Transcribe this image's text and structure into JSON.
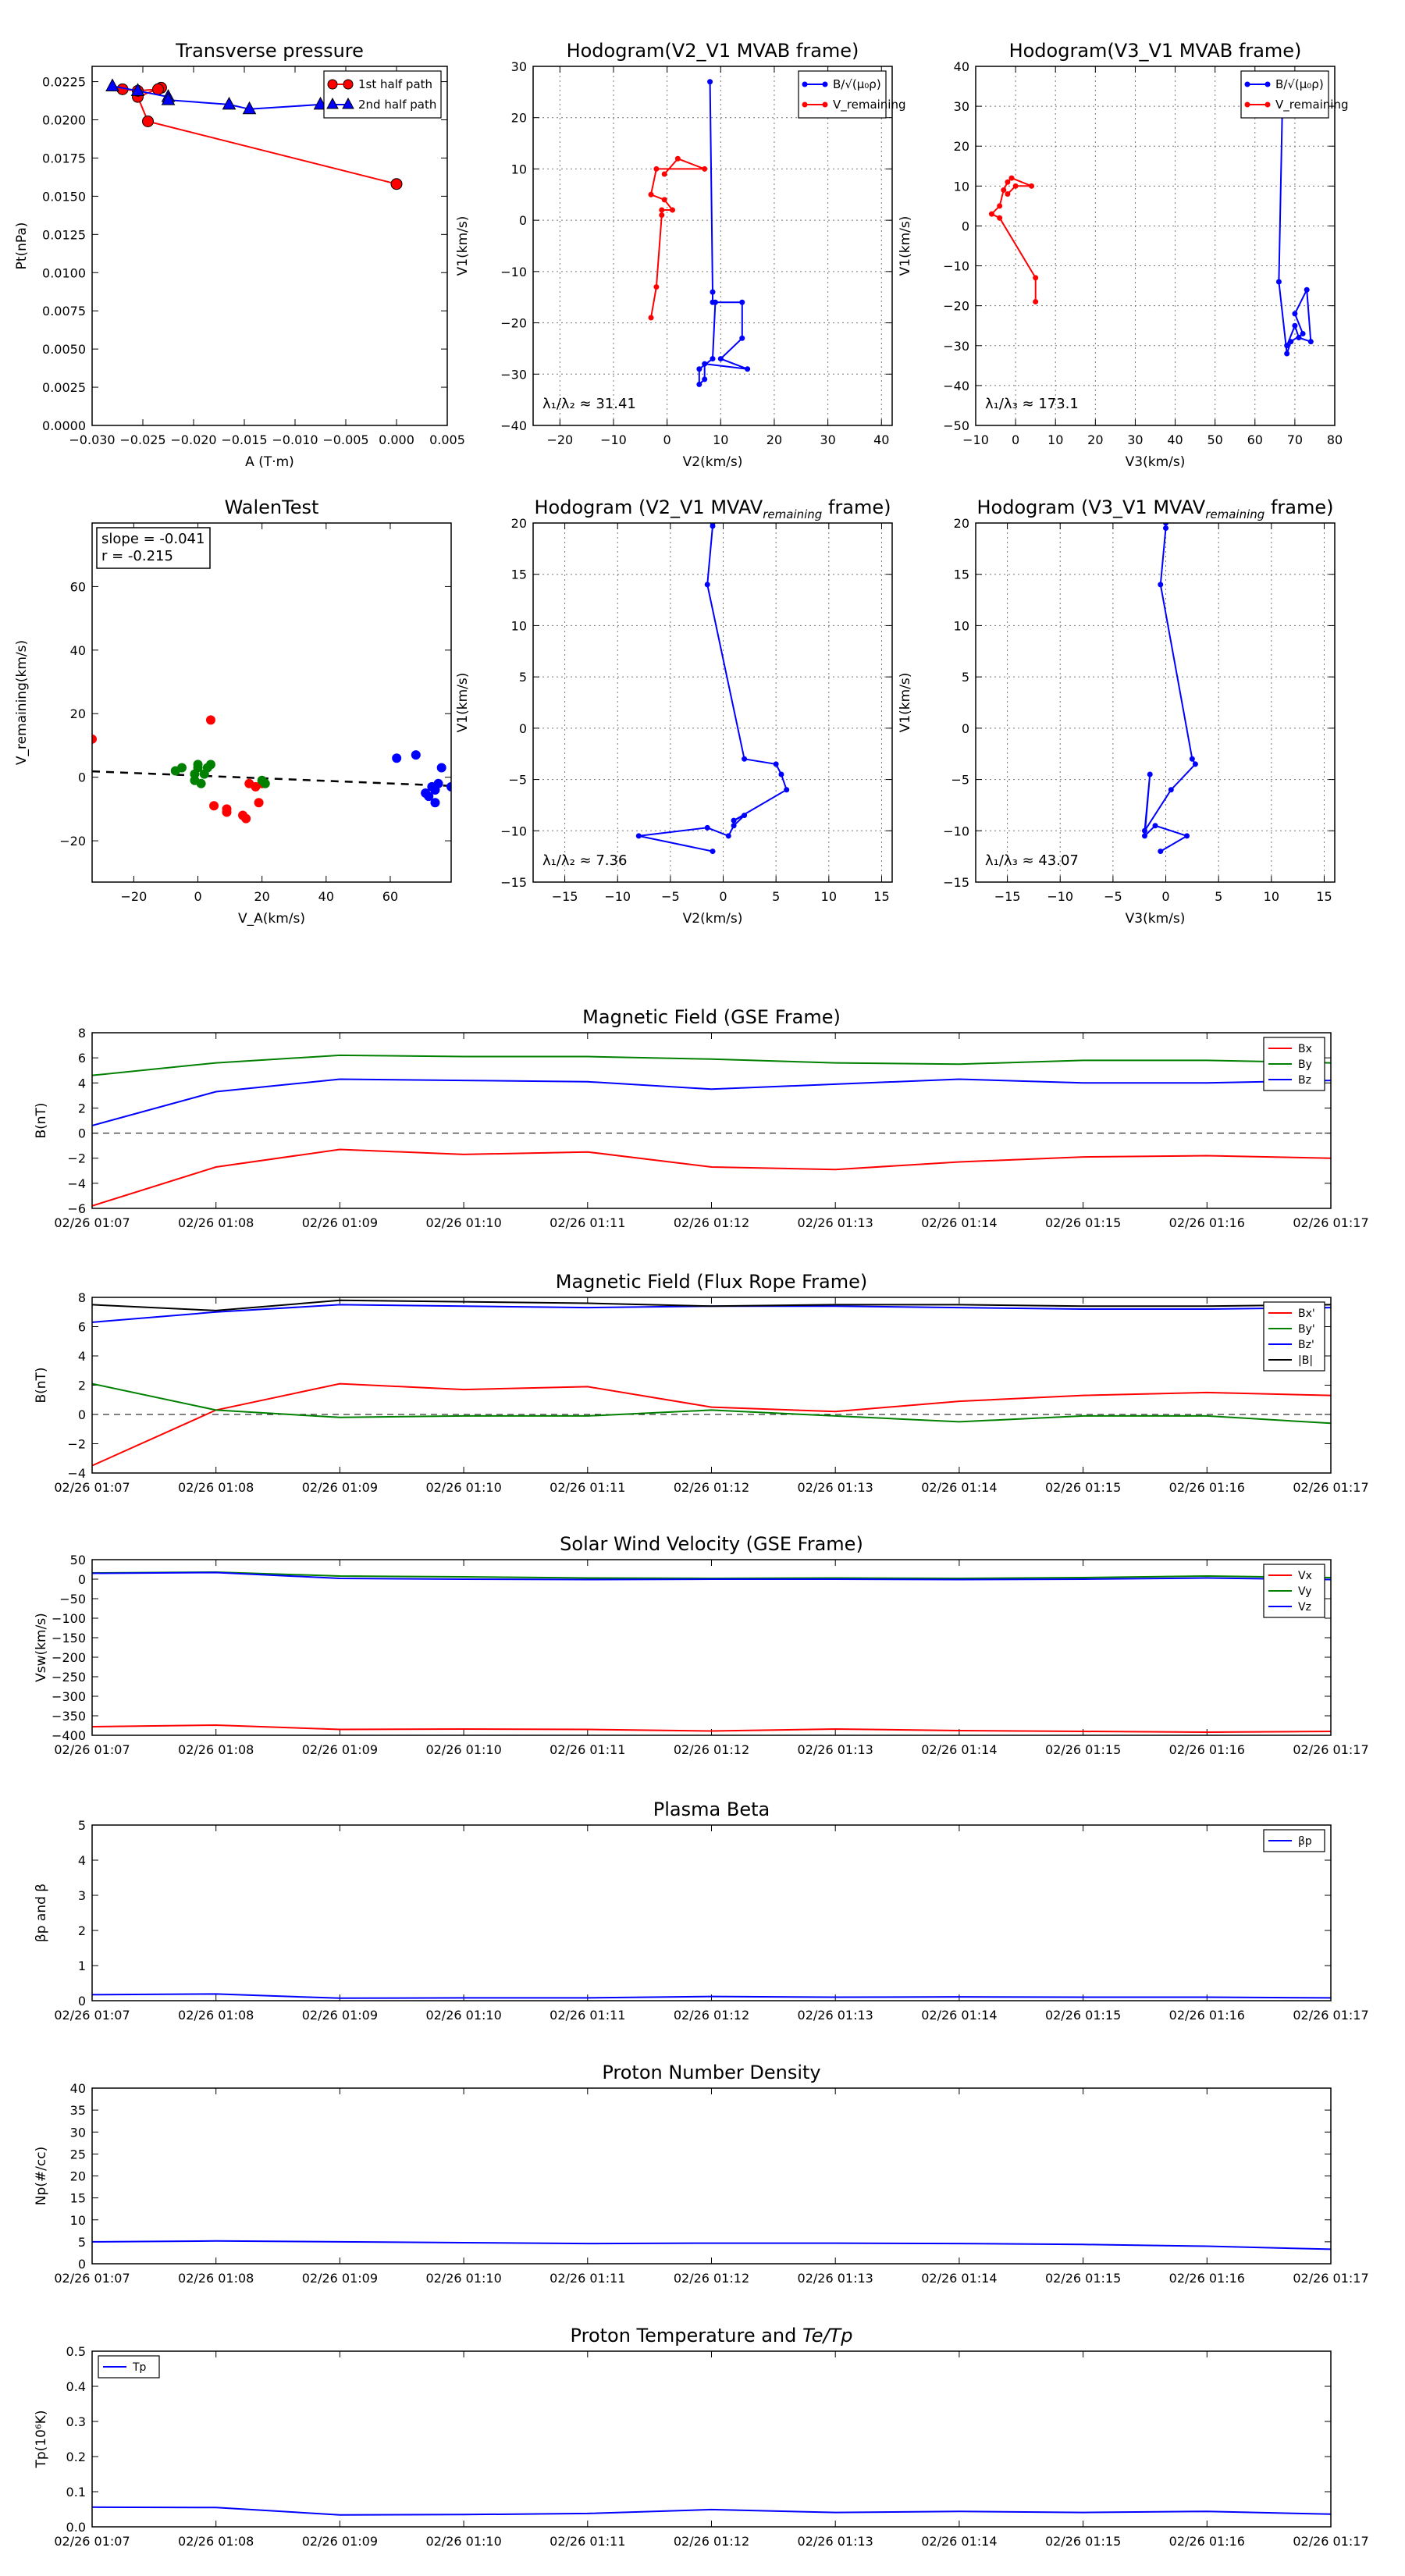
{
  "colors": {
    "red": "#ff0000",
    "blue": "#0000ff",
    "green": "#008000",
    "black": "#000000",
    "grid": "#888888"
  },
  "chart_data": [
    {
      "id": "tp",
      "type": "line",
      "title": "Transverse pressure",
      "xlabel": "A (T·m)",
      "ylabel": "Pt(nPa)",
      "xlim": [
        -0.03,
        0.005
      ],
      "ylim": [
        0,
        0.0235
      ],
      "xticks": [
        -0.03,
        -0.025,
        -0.02,
        -0.015,
        -0.01,
        -0.005,
        0,
        0.005
      ],
      "xtick_labels": [
        "−0.030",
        "−0.025",
        "−0.020",
        "−0.015",
        "−0.010",
        "−0.005",
        "0.000",
        "0.005"
      ],
      "yticks": [
        0,
        0.0025,
        0.005,
        0.0075,
        0.01,
        0.0125,
        0.015,
        0.0175,
        0.02,
        0.0225
      ],
      "ytick_labels": [
        "0.0000",
        "0.0025",
        "0.0050",
        "0.0075",
        "0.0100",
        "0.0125",
        "0.0150",
        "0.0175",
        "0.0200",
        "0.0225"
      ],
      "grid": false,
      "legend_loc": "upper right",
      "series": [
        {
          "name": "1st half path",
          "color": "#ff0000",
          "marker": "circle",
          "x": [
            -0.0,
            -0.0245,
            -0.0255,
            -0.0232,
            -0.0235,
            -0.0255,
            -0.027
          ],
          "y": [
            0.0158,
            0.0199,
            0.0215,
            0.0221,
            0.022,
            0.0219,
            0.022
          ]
        },
        {
          "name": "2nd half path",
          "color": "#0000ff",
          "marker": "triangle",
          "x": [
            -0.028,
            -0.0255,
            -0.0225,
            -0.0225,
            -0.0165,
            -0.0145,
            -0.0075
          ],
          "y": [
            0.0222,
            0.0219,
            0.0215,
            0.0213,
            0.021,
            0.0207,
            0.021
          ]
        }
      ]
    },
    {
      "id": "h1",
      "type": "line",
      "title": "Hodogram(V2_V1 MVAB frame)",
      "xlabel": "V2(km/s)",
      "ylabel": "V1(km/s)",
      "xlim": [
        -25,
        42
      ],
      "ylim": [
        -40,
        30
      ],
      "xticks": [
        -20,
        -10,
        0,
        10,
        20,
        30,
        40
      ],
      "xtick_labels": [
        "−20",
        "−10",
        "0",
        "10",
        "20",
        "30",
        "40"
      ],
      "yticks": [
        -40,
        -30,
        -20,
        -10,
        0,
        10,
        20,
        30
      ],
      "ytick_labels": [
        "−40",
        "−30",
        "−20",
        "−10",
        "0",
        "10",
        "20",
        "30"
      ],
      "grid": true,
      "legend_loc": "upper right",
      "annotation": "λ₁/λ₂ ≈ 31.41",
      "series": [
        {
          "name": "B/√(μ₀ρ)",
          "color": "#0000ff",
          "marker": "dot",
          "x": [
            8,
            8.5,
            8.5,
            14,
            14,
            10,
            15,
            7,
            7,
            6,
            6,
            8.5,
            9
          ],
          "y": [
            27,
            -14,
            -16,
            -16,
            -23,
            -27,
            -29,
            -28,
            -31,
            -32,
            -29,
            -27,
            -16
          ]
        },
        {
          "name": "V_remaining",
          "color": "#ff0000",
          "marker": "dot",
          "x": [
            -3,
            -2,
            -1,
            -1,
            1,
            -0.5,
            -3,
            -2,
            7,
            2,
            -0.5
          ],
          "y": [
            -19,
            -13,
            1,
            2,
            2,
            4,
            5,
            10,
            10,
            12,
            9
          ]
        }
      ]
    },
    {
      "id": "h2",
      "type": "line",
      "title": "Hodogram(V3_V1 MVAB frame)",
      "xlabel": "V3(km/s)",
      "ylabel": "V1(km/s)",
      "xlim": [
        -10,
        80
      ],
      "ylim": [
        -50,
        40
      ],
      "xticks": [
        -10,
        0,
        10,
        20,
        30,
        40,
        50,
        60,
        70,
        80
      ],
      "xtick_labels": [
        "−10",
        "0",
        "10",
        "20",
        "30",
        "40",
        "50",
        "60",
        "70",
        "80"
      ],
      "yticks": [
        -50,
        -40,
        -30,
        -20,
        -10,
        0,
        10,
        20,
        30,
        40
      ],
      "ytick_labels": [
        "−50",
        "−40",
        "−30",
        "−20",
        "−10",
        "0",
        "10",
        "20",
        "30",
        "40"
      ],
      "grid": true,
      "legend_loc": "upper right",
      "annotation": "λ₁/λ₃ ≈ 173.1",
      "series": [
        {
          "name": "B/√(μ₀ρ)",
          "color": "#0000ff",
          "marker": "dot",
          "x": [
            67,
            66,
            68,
            69,
            72,
            70,
            73,
            74,
            71,
            70,
            68
          ],
          "y": [
            37,
            -14,
            -32,
            -29,
            -27,
            -22,
            -16,
            -29,
            -28,
            -25,
            -30
          ]
        },
        {
          "name": "V_remaining",
          "color": "#ff0000",
          "marker": "dot",
          "x": [
            5,
            5,
            -4,
            -6,
            -4,
            -3,
            -2,
            -1,
            4,
            0,
            -2
          ],
          "y": [
            -19,
            -13,
            2,
            3,
            5,
            9,
            11,
            12,
            10,
            10,
            8
          ]
        }
      ]
    },
    {
      "id": "walen",
      "type": "scatter",
      "title": "WalenTest",
      "xlabel": "V_A(km/s)",
      "ylabel": "V_remaining(km/s)",
      "xlim": [
        -33,
        79
      ],
      "ylim": [
        -33,
        80
      ],
      "xticks": [
        -20,
        0,
        20,
        40,
        60
      ],
      "xtick_labels": [
        "−20",
        "0",
        "20",
        "40",
        "60"
      ],
      "yticks": [
        -20,
        0,
        20,
        40,
        60
      ],
      "ytick_labels": [
        "−20",
        "0",
        "20",
        "40",
        "60"
      ],
      "grid": false,
      "text": [
        "slope = -0.041",
        "r = -0.215"
      ],
      "fit_line": {
        "slope": -0.041,
        "intercept": 0.5
      },
      "series": [
        {
          "name": "red",
          "color": "#ff0000",
          "x": [
            -33,
            4,
            5,
            9,
            9,
            14,
            15,
            16,
            18,
            19,
            20
          ],
          "y": [
            12,
            18,
            -9,
            -10,
            -11,
            -12,
            -13,
            -2,
            -3,
            -8,
            -2
          ]
        },
        {
          "name": "green",
          "color": "#008000",
          "x": [
            -7,
            -5,
            -1,
            -1,
            0,
            0,
            1,
            2,
            3,
            4,
            20,
            21
          ],
          "y": [
            2,
            3,
            -1,
            1,
            3,
            4,
            -2,
            1,
            3,
            4,
            -1,
            -2
          ]
        },
        {
          "name": "blue",
          "color": "#0000ff",
          "x": [
            62,
            68,
            71,
            72,
            73,
            74,
            74,
            75,
            76,
            79
          ],
          "y": [
            6,
            7,
            -5,
            -6,
            -3,
            -4,
            -8,
            -2,
            3,
            -3
          ]
        }
      ]
    },
    {
      "id": "h3",
      "type": "line",
      "title": "Hodogram (V2_V1 MVAV",
      "title_sub": "remaining",
      "title_suffix": " frame)",
      "xlabel": "V2(km/s)",
      "ylabel": "V1(km/s)",
      "xlim": [
        -18,
        16
      ],
      "ylim": [
        -15,
        20
      ],
      "xticks": [
        -15,
        -10,
        -5,
        0,
        5,
        10,
        15
      ],
      "xtick_labels": [
        "−15",
        "−10",
        "−5",
        "0",
        "5",
        "10",
        "15"
      ],
      "yticks": [
        -15,
        -10,
        -5,
        0,
        5,
        10,
        15,
        20
      ],
      "ytick_labels": [
        "−15",
        "−10",
        "−5",
        "0",
        "5",
        "10",
        "15",
        "20"
      ],
      "grid": true,
      "annotation": "λ₁/λ₂ ≈ 7.36",
      "series": [
        {
          "name": "blue",
          "color": "#0000ff",
          "marker": "dot",
          "x": [
            -1,
            -1,
            -1.5,
            2,
            5,
            5.5,
            6,
            1,
            2,
            1,
            0.5,
            -1.5,
            -8,
            -1
          ],
          "y": [
            20,
            19.7,
            14,
            -3,
            -3.5,
            -4.5,
            -6,
            -9,
            -8.5,
            -9.5,
            -10.5,
            -9.7,
            -10.5,
            -12
          ]
        }
      ]
    },
    {
      "id": "h4",
      "type": "line",
      "title": "Hodogram (V3_V1 MVAV",
      "title_sub": "remaining",
      "title_suffix": " frame)",
      "xlabel": "V3(km/s)",
      "ylabel": "V1(km/s)",
      "xlim": [
        -18,
        16
      ],
      "ylim": [
        -15,
        20
      ],
      "xticks": [
        -15,
        -10,
        -5,
        0,
        5,
        10,
        15
      ],
      "xtick_labels": [
        "−15",
        "−10",
        "−5",
        "0",
        "5",
        "10",
        "15"
      ],
      "yticks": [
        -15,
        -10,
        -5,
        0,
        5,
        10,
        15,
        20
      ],
      "ytick_labels": [
        "−15",
        "−10",
        "−5",
        "0",
        "5",
        "10",
        "15",
        "20"
      ],
      "grid": true,
      "annotation": "λ₁/λ₃ ≈ 43.07",
      "series": [
        {
          "name": "blue",
          "color": "#0000ff",
          "marker": "dot",
          "x": [
            0,
            0,
            -0.5,
            2.5,
            2.8,
            0.5,
            -2,
            -1.5,
            -2,
            -1,
            2,
            -0.5
          ],
          "y": [
            20,
            19.5,
            14,
            -3,
            -3.5,
            -6,
            -10,
            -4.5,
            -10.5,
            -9.5,
            -10.5,
            -12
          ]
        }
      ]
    },
    {
      "id": "ts1",
      "type": "line",
      "title": "Magnetic Field (GSE Frame)",
      "ylabel": "B(nT)",
      "categories": [
        "02/26 01:07",
        "02/26 01:08",
        "02/26 01:09",
        "02/26 01:10",
        "02/26 01:11",
        "02/26 01:12",
        "02/26 01:13",
        "02/26 01:14",
        "02/26 01:15",
        "02/26 01:16",
        "02/26 01:17"
      ],
      "ylim": [
        -6,
        8
      ],
      "yticks": [
        -6,
        -4,
        -2,
        0,
        2,
        4,
        6,
        8
      ],
      "ytick_labels": [
        "−6",
        "−4",
        "−2",
        "0",
        "2",
        "4",
        "6",
        "8"
      ],
      "zero_line": true,
      "legend_loc": "upper right",
      "series": [
        {
          "name": "Bx",
          "color": "#ff0000",
          "values": [
            -5.8,
            -2.7,
            -1.3,
            -1.7,
            -1.5,
            -2.7,
            -2.9,
            -2.3,
            -1.9,
            -1.8,
            -2.0
          ]
        },
        {
          "name": "By",
          "color": "#008000",
          "values": [
            4.6,
            5.6,
            6.2,
            6.1,
            6.1,
            5.9,
            5.6,
            5.5,
            5.8,
            5.8,
            5.6
          ]
        },
        {
          "name": "Bz",
          "color": "#0000ff",
          "values": [
            0.6,
            3.3,
            4.3,
            4.2,
            4.1,
            3.5,
            3.9,
            4.3,
            4.0,
            4.0,
            4.2
          ]
        }
      ]
    },
    {
      "id": "ts2",
      "type": "line",
      "title": "Magnetic Field (Flux Rope Frame)",
      "ylabel": "B(nT)",
      "categories": [
        "02/26 01:07",
        "02/26 01:08",
        "02/26 01:09",
        "02/26 01:10",
        "02/26 01:11",
        "02/26 01:12",
        "02/26 01:13",
        "02/26 01:14",
        "02/26 01:15",
        "02/26 01:16",
        "02/26 01:17"
      ],
      "ylim": [
        -4,
        8
      ],
      "yticks": [
        -4,
        -2,
        0,
        2,
        4,
        6,
        8
      ],
      "ytick_labels": [
        "−4",
        "−2",
        "0",
        "2",
        "4",
        "6",
        "8"
      ],
      "zero_line": true,
      "legend_loc": "upper right",
      "series": [
        {
          "name": "Bx'",
          "color": "#ff0000",
          "values": [
            -3.5,
            0.3,
            2.1,
            1.7,
            1.9,
            0.5,
            0.2,
            0.9,
            1.3,
            1.5,
            1.3
          ]
        },
        {
          "name": "By'",
          "color": "#008000",
          "values": [
            2.1,
            0.3,
            -0.2,
            -0.1,
            -0.1,
            0.3,
            -0.1,
            -0.5,
            -0.1,
            -0.1,
            -0.6
          ]
        },
        {
          "name": "Bz'",
          "color": "#0000ff",
          "values": [
            6.3,
            7.0,
            7.5,
            7.4,
            7.3,
            7.4,
            7.4,
            7.3,
            7.2,
            7.2,
            7.3
          ]
        },
        {
          "name": "|B|",
          "color": "#000000",
          "values": [
            7.5,
            7.1,
            7.8,
            7.7,
            7.6,
            7.4,
            7.5,
            7.5,
            7.4,
            7.4,
            7.5
          ]
        }
      ]
    },
    {
      "id": "ts3",
      "type": "line",
      "title": "Solar Wind Velocity (GSE Frame)",
      "ylabel": "Vsw(km/s)",
      "categories": [
        "02/26 01:07",
        "02/26 01:08",
        "02/26 01:09",
        "02/26 01:10",
        "02/26 01:11",
        "02/26 01:12",
        "02/26 01:13",
        "02/26 01:14",
        "02/26 01:15",
        "02/26 01:16",
        "02/26 01:17"
      ],
      "ylim": [
        -400,
        50
      ],
      "yticks": [
        -400,
        -350,
        -300,
        -250,
        -200,
        -150,
        -100,
        -50,
        0,
        50
      ],
      "ytick_labels": [
        "−400",
        "−350",
        "−300",
        "−250",
        "−200",
        "−150",
        "−100",
        "−50",
        "0",
        "50"
      ],
      "legend_loc": "upper right",
      "series": [
        {
          "name": "Vx",
          "color": "#ff0000",
          "values": [
            -378,
            -374,
            -385,
            -384,
            -385,
            -389,
            -384,
            -388,
            -390,
            -392,
            -390
          ]
        },
        {
          "name": "Vy",
          "color": "#008000",
          "values": [
            16,
            18,
            8,
            6,
            3,
            2,
            3,
            2,
            4,
            8,
            4
          ]
        },
        {
          "name": "Vz",
          "color": "#0000ff",
          "values": [
            15,
            17,
            2,
            0,
            -1,
            0,
            0,
            -1,
            0,
            3,
            -1
          ]
        }
      ]
    },
    {
      "id": "ts4",
      "type": "line",
      "title": "Plasma Beta",
      "ylabel": "βp and β",
      "categories": [
        "02/26 01:07",
        "02/26 01:08",
        "02/26 01:09",
        "02/26 01:10",
        "02/26 01:11",
        "02/26 01:12",
        "02/26 01:13",
        "02/26 01:14",
        "02/26 01:15",
        "02/26 01:16",
        "02/26 01:17"
      ],
      "ylim": [
        0,
        5
      ],
      "yticks": [
        0,
        1,
        2,
        3,
        4,
        5
      ],
      "ytick_labels": [
        "0",
        "1",
        "2",
        "3",
        "4",
        "5"
      ],
      "legend_loc": "upper right",
      "series": [
        {
          "name": "βp",
          "color": "#0000ff",
          "values": [
            0.17,
            0.19,
            0.07,
            0.08,
            0.08,
            0.12,
            0.1,
            0.11,
            0.1,
            0.1,
            0.08
          ]
        }
      ]
    },
    {
      "id": "ts5",
      "type": "line",
      "title": "Proton Number Density",
      "ylabel": "Np(#/cc)",
      "categories": [
        "02/26 01:07",
        "02/26 01:08",
        "02/26 01:09",
        "02/26 01:10",
        "02/26 01:11",
        "02/26 01:12",
        "02/26 01:13",
        "02/26 01:14",
        "02/26 01:15",
        "02/26 01:16",
        "02/26 01:17"
      ],
      "ylim": [
        0,
        40
      ],
      "yticks": [
        0,
        5,
        10,
        15,
        20,
        25,
        30,
        35,
        40
      ],
      "ytick_labels": [
        "0",
        "5",
        "10",
        "15",
        "20",
        "25",
        "30",
        "35",
        "40"
      ],
      "series": [
        {
          "name": "Np",
          "color": "#0000ff",
          "values": [
            5.0,
            5.2,
            5.0,
            4.8,
            4.6,
            4.7,
            4.7,
            4.6,
            4.4,
            4.0,
            3.3
          ]
        }
      ]
    },
    {
      "id": "ts6",
      "type": "line",
      "title": "Proton Temperature and",
      "title_math": "Te/Tp",
      "ylabel": "Tp(10⁶K)",
      "categories": [
        "02/26 01:07",
        "02/26 01:08",
        "02/26 01:09",
        "02/26 01:10",
        "02/26 01:11",
        "02/26 01:12",
        "02/26 01:13",
        "02/26 01:14",
        "02/26 01:15",
        "02/26 01:16",
        "02/26 01:17"
      ],
      "ylim": [
        0,
        0.5
      ],
      "yticks": [
        0,
        0.1,
        0.2,
        0.3,
        0.4,
        0.5
      ],
      "ytick_labels": [
        "0.0",
        "0.1",
        "0.2",
        "0.3",
        "0.4",
        "0.5"
      ],
      "legend_loc": "upper left",
      "series": [
        {
          "name": "Tp",
          "color": "#0000ff",
          "values": [
            0.056,
            0.055,
            0.034,
            0.035,
            0.038,
            0.049,
            0.041,
            0.044,
            0.041,
            0.044,
            0.036
          ]
        }
      ]
    }
  ]
}
